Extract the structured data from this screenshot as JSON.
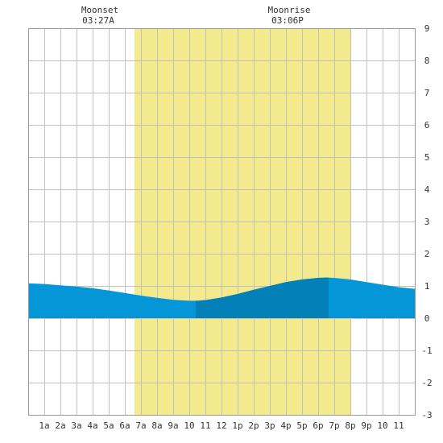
{
  "chart_data": {
    "type": "area",
    "title": "",
    "xlabel": "",
    "ylabel": "",
    "x_ticks": [
      "1a",
      "2a",
      "3a",
      "4a",
      "5a",
      "6a",
      "7a",
      "8a",
      "9a",
      "10",
      "11",
      "12",
      "1p",
      "2p",
      "3p",
      "4p",
      "5p",
      "6p",
      "7p",
      "8p",
      "9p",
      "10",
      "11"
    ],
    "y_ticks": [
      "9",
      "8",
      "7",
      "6",
      "5",
      "4",
      "3",
      "2",
      "1",
      "0",
      "-1",
      "-2",
      "-3"
    ],
    "xlim_hours": [
      0,
      24
    ],
    "ylim": [
      -3,
      9
    ],
    "grid": true,
    "daylight": {
      "start_hour": 6.6,
      "end_hour": 20.0,
      "color": "#f2ea8c"
    },
    "highlight": {
      "start_hour": 10.4,
      "end_hour": 18.65,
      "color": "#0480b8"
    },
    "fill_color": "#0596d8",
    "series": [
      {
        "x": [
          0,
          1,
          2,
          3,
          4,
          5,
          6,
          7,
          8,
          9,
          10,
          10.5,
          11,
          12,
          13,
          14,
          15,
          16,
          17,
          18,
          18.5,
          19,
          20,
          21,
          22,
          23,
          24
        ],
        "values": [
          1.08,
          1.06,
          1.02,
          0.98,
          0.93,
          0.86,
          0.78,
          0.7,
          0.63,
          0.57,
          0.54,
          0.54,
          0.56,
          0.64,
          0.75,
          0.88,
          1.0,
          1.12,
          1.2,
          1.25,
          1.26,
          1.25,
          1.2,
          1.12,
          1.04,
          0.96,
          0.91
        ]
      }
    ],
    "annotations": [
      {
        "label": "Moonset",
        "time": "03:27A"
      },
      {
        "label": "Moonrise",
        "time": "03:06P"
      }
    ]
  }
}
